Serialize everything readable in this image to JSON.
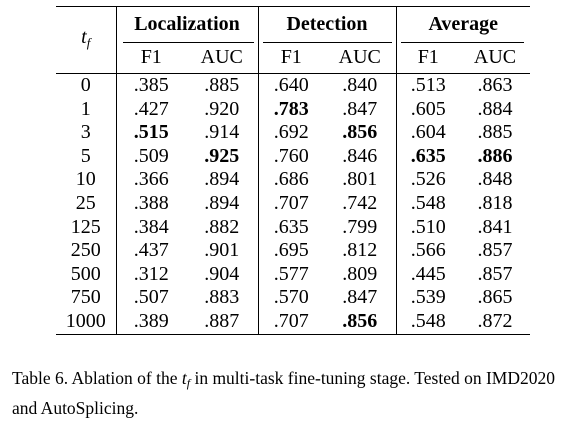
{
  "table": {
    "row_header": {
      "symbol": "t",
      "subscript": "f"
    },
    "groups": [
      "Localization",
      "Detection",
      "Average"
    ],
    "subheaders": [
      "F1",
      "AUC",
      "F1",
      "AUC",
      "F1",
      "AUC"
    ],
    "rows": [
      {
        "tf": "0",
        "cells": [
          ".385",
          ".885",
          ".640",
          ".840",
          ".513",
          ".863"
        ],
        "bold": []
      },
      {
        "tf": "1",
        "cells": [
          ".427",
          ".920",
          ".783",
          ".847",
          ".605",
          ".884"
        ],
        "bold": [
          2
        ]
      },
      {
        "tf": "3",
        "cells": [
          ".515",
          ".914",
          ".692",
          ".856",
          ".604",
          ".885"
        ],
        "bold": [
          0,
          3
        ]
      },
      {
        "tf": "5",
        "cells": [
          ".509",
          ".925",
          ".760",
          ".846",
          ".635",
          ".886"
        ],
        "bold": [
          1,
          4,
          5
        ]
      },
      {
        "tf": "10",
        "cells": [
          ".366",
          ".894",
          ".686",
          ".801",
          ".526",
          ".848"
        ],
        "bold": []
      },
      {
        "tf": "25",
        "cells": [
          ".388",
          ".894",
          ".707",
          ".742",
          ".548",
          ".818"
        ],
        "bold": []
      },
      {
        "tf": "125",
        "cells": [
          ".384",
          ".882",
          ".635",
          ".799",
          ".510",
          ".841"
        ],
        "bold": []
      },
      {
        "tf": "250",
        "cells": [
          ".437",
          ".901",
          ".695",
          ".812",
          ".566",
          ".857"
        ],
        "bold": []
      },
      {
        "tf": "500",
        "cells": [
          ".312",
          ".904",
          ".577",
          ".809",
          ".445",
          ".857"
        ],
        "bold": []
      },
      {
        "tf": "750",
        "cells": [
          ".507",
          ".883",
          ".570",
          ".847",
          ".539",
          ".865"
        ],
        "bold": []
      },
      {
        "tf": "1000",
        "cells": [
          ".389",
          ".887",
          ".707",
          ".856",
          ".548",
          ".872"
        ],
        "bold": [
          3
        ]
      }
    ]
  },
  "caption": {
    "prefix": "Table 6. Ablation of the ",
    "symbol": "t",
    "subscript": "f",
    "suffix": " in multi-task fine-tuning stage. Tested on IMD2020 and AutoSplicing."
  }
}
